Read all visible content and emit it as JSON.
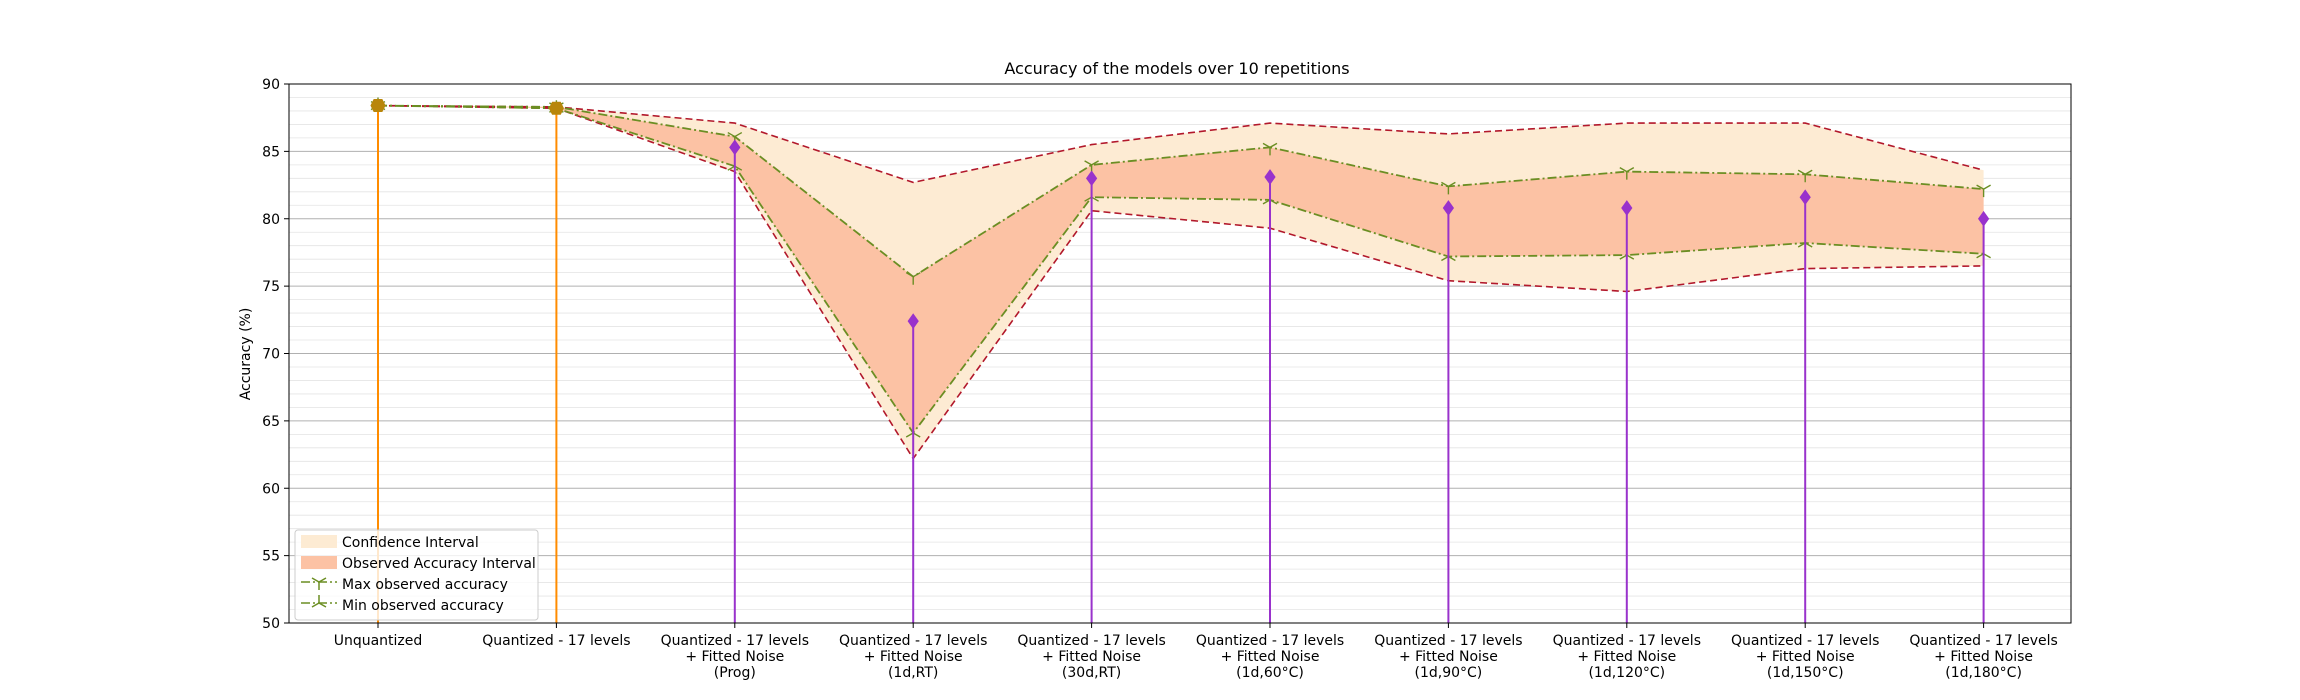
{
  "chart_data": {
    "type": "line",
    "title": "Accuracy of the models over 10 repetitions",
    "xlabel": "",
    "ylabel": "Accuracy (%)",
    "ylim": [
      50,
      90
    ],
    "yticks": [
      50,
      55,
      60,
      65,
      70,
      75,
      80,
      85,
      90
    ],
    "grid": true,
    "legend_position": "lower-left",
    "categories": [
      [
        "Unquantized"
      ],
      [
        "Quantized - 17 levels"
      ],
      [
        "Quantized - 17 levels",
        "+ Fitted Noise",
        "(Prog)"
      ],
      [
        "Quantized - 17 levels",
        "+ Fitted Noise",
        "(1d,RT)"
      ],
      [
        "Quantized - 17 levels",
        "+ Fitted Noise",
        "(30d,RT)"
      ],
      [
        "Quantized - 17 levels",
        "+ Fitted Noise",
        "(1d,60°C)"
      ],
      [
        "Quantized - 17 levels",
        "+ Fitted Noise",
        "(1d,90°C)"
      ],
      [
        "Quantized - 17 levels",
        "+ Fitted Noise",
        "(1d,120°C)"
      ],
      [
        "Quantized - 17 levels",
        "+ Fitted Noise",
        "(1d,150°C)"
      ],
      [
        "Quantized - 17 levels",
        "+ Fitted Noise",
        "(1d,180°C)"
      ]
    ],
    "mean": [
      88.4,
      88.2,
      85.3,
      72.4,
      83.0,
      83.1,
      80.8,
      80.8,
      81.6,
      80.0
    ],
    "series": [
      {
        "name": "Confidence Interval",
        "kind": "band",
        "upper": [
          88.4,
          88.3,
          87.1,
          82.7,
          85.5,
          87.1,
          86.3,
          87.1,
          87.1,
          83.6
        ],
        "lower": [
          88.4,
          88.2,
          83.5,
          62.2,
          80.6,
          79.3,
          75.4,
          74.6,
          76.3,
          76.5
        ]
      },
      {
        "name": "Observed Accuracy Interval",
        "kind": "band"
      },
      {
        "name": "Max observed accuracy",
        "kind": "line",
        "values": [
          88.4,
          88.3,
          86.1,
          75.7,
          84.0,
          85.3,
          82.4,
          83.5,
          83.3,
          82.2
        ]
      },
      {
        "name": "Min observed accuracy",
        "kind": "line",
        "values": [
          88.4,
          88.2,
          83.9,
          64.1,
          81.6,
          81.4,
          77.2,
          77.3,
          78.2,
          77.4
        ]
      }
    ],
    "colors": {
      "confidence": "#fdebd3",
      "observed": "#fcc2a4",
      "ci_line": "#b2182b",
      "minmax_line": "#6b8e23",
      "stem_baseline": "#ff8c00",
      "stem_noise": "#9932cc",
      "marker_baseline": "#b8860b",
      "marker_noise": "#9932cc"
    }
  }
}
